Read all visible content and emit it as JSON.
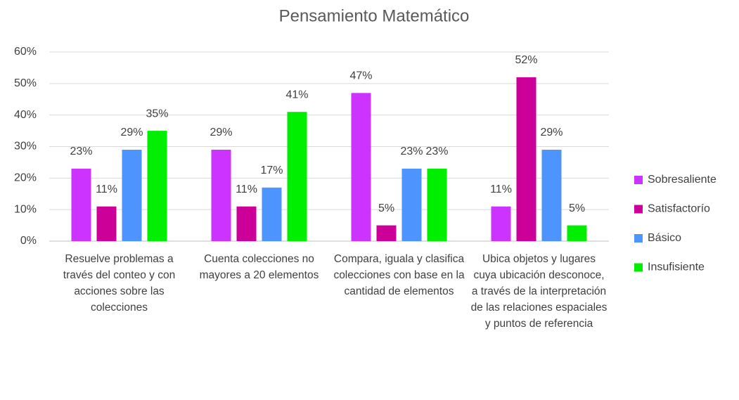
{
  "chart_data": {
    "type": "bar",
    "title": "Pensamiento Matemático",
    "categories": [
      "Resuelve problemas a través del conteo y con acciones sobre las colecciones",
      "Cuenta colecciones no mayores a 20 elementos",
      "Compara, iguala y clasifica colecciones con base en la cantidad de elementos",
      "Ubica objetos y lugares cuya ubicación desconoce, a través de la interpretación de las relaciones espaciales y puntos de referencia"
    ],
    "series": [
      {
        "name": "Sobresaliente",
        "color": "#cc33ff",
        "values": [
          23,
          29,
          47,
          11
        ],
        "value_labels": [
          "23%",
          "29%",
          "47%",
          "11%"
        ]
      },
      {
        "name": "Satisfactorío",
        "color": "#cc0099",
        "values": [
          11,
          11,
          5,
          52
        ],
        "value_labels": [
          "11%",
          "11%",
          "5%",
          "52%"
        ]
      },
      {
        "name": "Básico",
        "color": "#4d94ff",
        "values": [
          29,
          17,
          23,
          29
        ],
        "value_labels": [
          "29%",
          "17%",
          "23%",
          "29%"
        ]
      },
      {
        "name": "Insufisiente",
        "color": "#00ee00",
        "values": [
          35,
          41,
          23,
          5
        ],
        "value_labels": [
          "35%",
          "41%",
          "23%",
          "5%"
        ]
      }
    ],
    "ylim": [
      0,
      60
    ],
    "yticks": [
      {
        "value": 0,
        "label": "0%"
      },
      {
        "value": 10,
        "label": "10%"
      },
      {
        "value": 20,
        "label": "20%"
      },
      {
        "value": 30,
        "label": "30%"
      },
      {
        "value": 40,
        "label": "40%"
      },
      {
        "value": 50,
        "label": "50%"
      },
      {
        "value": 60,
        "label": "60%"
      }
    ],
    "grid": true,
    "legend": "right"
  }
}
